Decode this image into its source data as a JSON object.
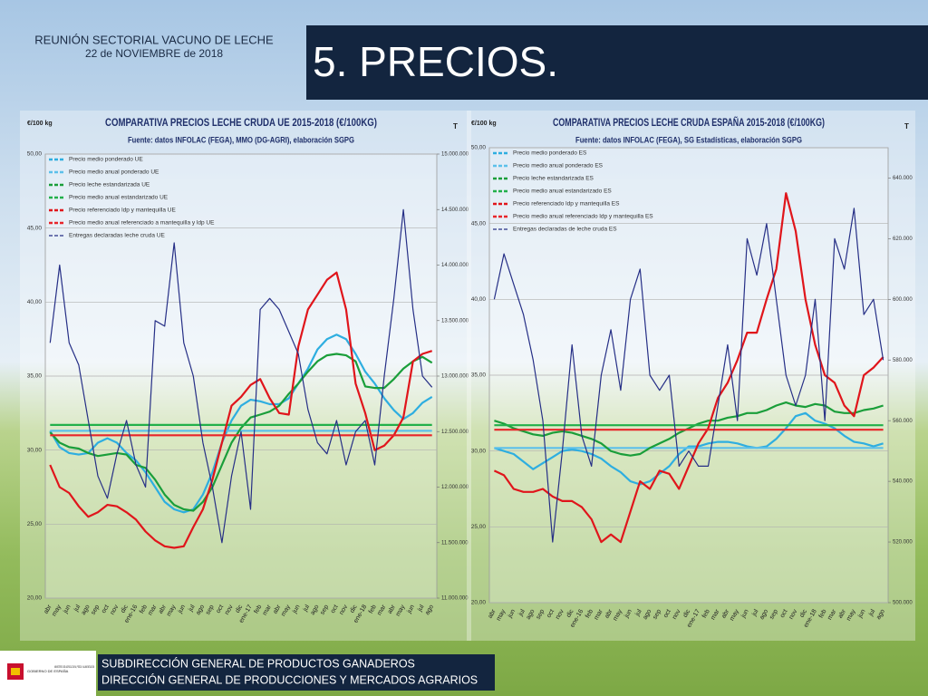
{
  "header": {
    "event": "REUNIÓN SECTORIAL VACUNO DE LECHE",
    "date": "22 de NOVIEMBRE de 2018",
    "title": "5. PRECIOS."
  },
  "footer": {
    "lines": [
      "SUBDIRECCIÓN GENERAL DE PRODUCTOS GANADEROS",
      "DIRECCIÓN GENERAL DE PRODUCCIONES Y MERCADOS AGRARIOS"
    ],
    "logo_government": "GOBIERNO DE ESPAÑA",
    "logo_ministry": "MINISTERIO DE AGRICULTURA, PESCA Y ALIMENTACIÓN"
  },
  "chart_data": [
    {
      "type": "line",
      "title": "COMPARATIVA PRECIOS LECHE CRUDA UE 2015-2018 (€/100KG)",
      "subtitle": "Fuente: datos INFOLAC (FEGA), MMO (DG-AGRI), elaboración SGPG",
      "y_label": "€/100 kg",
      "y2_label": "T",
      "grid": true,
      "legend": "upper left",
      "categories": [
        "abr",
        "may",
        "jun",
        "jul",
        "ago",
        "sep",
        "oct",
        "nov",
        "dic",
        "ene-16",
        "feb",
        "mar",
        "abr",
        "may",
        "jun",
        "jul",
        "ago",
        "sep",
        "oct",
        "nov",
        "dic",
        "ene-17",
        "feb",
        "mar",
        "abr",
        "may",
        "jun",
        "jul",
        "ago",
        "sep",
        "oct",
        "nov",
        "dic",
        "ene-18",
        "feb",
        "mar",
        "abr",
        "may",
        "jun",
        "jul",
        "ago"
      ],
      "ylim": [
        20,
        50
      ],
      "yticks": [
        {
          "value": 20,
          "label": "20,00"
        },
        {
          "value": 25,
          "label": "25,00"
        },
        {
          "value": 30,
          "label": "30,00"
        },
        {
          "value": 35,
          "label": "35,00"
        },
        {
          "value": 40,
          "label": "40,00"
        },
        {
          "value": 45,
          "label": "45,00"
        },
        {
          "value": 50,
          "label": "50,00"
        }
      ],
      "y2lim": [
        11000000,
        15000000
      ],
      "y2ticks": [
        {
          "value": 11000000,
          "label": "11.000.000"
        },
        {
          "value": 11500000,
          "label": "11.500.000"
        },
        {
          "value": 12000000,
          "label": "12.000.000"
        },
        {
          "value": 12500000,
          "label": "12.500.000"
        },
        {
          "value": 13000000,
          "label": "13.000.000"
        },
        {
          "value": 13500000,
          "label": "13.500.000"
        },
        {
          "value": 14000000,
          "label": "14.000.000"
        },
        {
          "value": 14500000,
          "label": "14.500.000"
        },
        {
          "value": 15000000,
          "label": "15.000.000"
        }
      ],
      "series": [
        {
          "name": "Precio medio ponderado UE",
          "color": "#2eaee0",
          "values": [
            31.3,
            30.2,
            29.8,
            29.7,
            29.8,
            30.5,
            30.8,
            30.5,
            29.8,
            29.3,
            28.5,
            27.5,
            26.5,
            26.0,
            25.8,
            26.0,
            27.0,
            28.5,
            30.5,
            32.0,
            33.0,
            33.4,
            33.3,
            33.1,
            33.1,
            33.5,
            34.5,
            35.5,
            36.8,
            37.5,
            37.8,
            37.5,
            36.5,
            35.3,
            34.5,
            33.5,
            32.7,
            32.1,
            32.5,
            33.2,
            33.6
          ]
        },
        {
          "name": "Precio medio anual ponderado UE",
          "color": "#5cc0ea",
          "values": [
            31.3,
            31.3,
            31.3,
            31.3,
            31.3,
            31.3,
            31.3,
            31.3,
            31.3,
            31.3,
            31.3,
            31.3,
            31.3,
            31.3,
            31.3,
            31.3,
            31.3,
            31.3,
            31.3,
            31.3,
            31.3,
            31.3,
            31.3,
            31.3,
            31.3,
            31.3,
            31.3,
            31.3,
            31.3,
            31.3,
            31.3,
            31.3,
            31.3,
            31.3,
            31.3,
            31.3,
            31.3,
            31.3,
            31.3,
            31.3,
            31.3
          ]
        },
        {
          "name": "Precio leche estandarizada UE",
          "color": "#1a9e3a",
          "values": [
            31.2,
            30.5,
            30.2,
            30.1,
            29.8,
            29.6,
            29.7,
            29.8,
            29.7,
            29.0,
            28.8,
            28.0,
            27.0,
            26.3,
            26.0,
            25.9,
            26.5,
            27.5,
            29.0,
            30.5,
            31.5,
            32.2,
            32.4,
            32.6,
            33.0,
            33.8,
            34.5,
            35.3,
            36.0,
            36.4,
            36.5,
            36.4,
            36.0,
            34.3,
            34.2,
            34.2,
            34.8,
            35.5,
            36.0,
            36.3,
            35.9
          ]
        },
        {
          "name": "Precio medio anual estandarizado UE",
          "color": "#22b04a",
          "values": [
            31.7,
            31.7,
            31.7,
            31.7,
            31.7,
            31.7,
            31.7,
            31.7,
            31.7,
            31.7,
            31.7,
            31.7,
            31.7,
            31.7,
            31.7,
            31.7,
            31.7,
            31.7,
            31.7,
            31.7,
            31.7,
            31.7,
            31.7,
            31.7,
            31.7,
            31.7,
            31.7,
            31.7,
            31.7,
            31.7,
            31.7,
            31.7,
            31.7,
            31.7,
            31.7,
            31.7,
            31.7,
            31.7,
            31.7,
            31.7,
            31.7
          ]
        },
        {
          "name": "Precio referenciado ldp y mantequilla UE",
          "color": "#e0151b",
          "values": [
            29.0,
            27.5,
            27.1,
            26.2,
            25.5,
            25.8,
            26.3,
            26.2,
            25.8,
            25.3,
            24.5,
            23.9,
            23.5,
            23.4,
            23.5,
            24.8,
            26.0,
            28.0,
            30.5,
            33.0,
            33.6,
            34.4,
            34.8,
            33.5,
            32.5,
            32.4,
            37.0,
            39.5,
            40.5,
            41.5,
            42.0,
            39.5,
            34.5,
            32.5,
            30.0,
            30.3,
            31.0,
            32.2,
            36.0,
            36.5,
            36.7
          ]
        },
        {
          "name": "Precio medio anual referenciado a mantequilla y ldp UE",
          "color": "#e8262b",
          "values": [
            31.0,
            31.0,
            31.0,
            31.0,
            31.0,
            31.0,
            31.0,
            31.0,
            31.0,
            31.0,
            31.0,
            31.0,
            31.0,
            31.0,
            31.0,
            31.0,
            31.0,
            31.0,
            31.0,
            31.0,
            31.0,
            31.0,
            31.0,
            31.0,
            31.0,
            31.0,
            31.0,
            31.0,
            31.0,
            31.0,
            31.0,
            31.0,
            31.0,
            31.0,
            31.0,
            31.0,
            31.0,
            31.0,
            31.0,
            31.0,
            31.0
          ]
        },
        {
          "name": "Entregas declaradas leche cruda UE",
          "color": "#262f86",
          "axis": "y2",
          "values": [
            13300000,
            14000000,
            13300000,
            13100000,
            12600000,
            12100000,
            11900000,
            12300000,
            12600000,
            12200000,
            12000000,
            13500000,
            13450000,
            14200000,
            13300000,
            13000000,
            12400000,
            12000000,
            11500000,
            12100000,
            12500000,
            11800000,
            13600000,
            13700000,
            13600000,
            13400000,
            13200000,
            12700000,
            12400000,
            12300000,
            12600000,
            12200000,
            12500000,
            12600000,
            12200000,
            13000000,
            13700000,
            14500000,
            13600000,
            13000000,
            12900000
          ]
        }
      ]
    },
    {
      "type": "line",
      "title": "COMPARATIVA PRECIOS LECHE CRUDA ESPAÑA 2015-2018 (€/100KG)",
      "subtitle": "Fuente: datos INFOLAC (FEGA), SG Estadísticas, elaboración SGPG",
      "y_label": "€/100 kg",
      "y2_label": "T",
      "grid": true,
      "legend": "upper left",
      "categories": [
        "abr",
        "may",
        "jun",
        "jul",
        "ago",
        "sep",
        "oct",
        "nov",
        "dic",
        "ene-16",
        "feb",
        "mar",
        "abr",
        "may",
        "jun",
        "jul",
        "ago",
        "sep",
        "oct",
        "nov",
        "dic",
        "ene-17",
        "feb",
        "mar",
        "abr",
        "may",
        "jun",
        "jul",
        "ago",
        "sep",
        "oct",
        "nov",
        "dic",
        "ene-18",
        "feb",
        "mar",
        "abr",
        "may",
        "jun",
        "jul",
        "ago"
      ],
      "ylim": [
        20,
        50
      ],
      "yticks": [
        {
          "value": 20,
          "label": "20,00"
        },
        {
          "value": 25,
          "label": "25,00"
        },
        {
          "value": 30,
          "label": "30,00"
        },
        {
          "value": 35,
          "label": "35,00"
        },
        {
          "value": 40,
          "label": "40,00"
        },
        {
          "value": 45,
          "label": "45,00"
        },
        {
          "value": 50,
          "label": "50,00"
        }
      ],
      "y2lim": [
        500000,
        650000
      ],
      "y2ticks": [
        {
          "value": 500000,
          "label": "500.000"
        },
        {
          "value": 520000,
          "label": "520.000"
        },
        {
          "value": 540000,
          "label": "540.000"
        },
        {
          "value": 560000,
          "label": "560.000"
        },
        {
          "value": 580000,
          "label": "580.000"
        },
        {
          "value": 600000,
          "label": "600.000"
        },
        {
          "value": 620000,
          "label": "620.000"
        },
        {
          "value": 640000,
          "label": "640.000"
        }
      ],
      "series": [
        {
          "name": "Precio medio ponderado ES",
          "color": "#2eaee0",
          "values": [
            30.2,
            30.0,
            29.8,
            29.3,
            28.8,
            29.2,
            29.6,
            30.0,
            30.1,
            30.0,
            29.8,
            29.5,
            29.0,
            28.6,
            28.0,
            27.8,
            28.0,
            28.5,
            29.0,
            29.8,
            30.3,
            30.3,
            30.5,
            30.6,
            30.6,
            30.5,
            30.3,
            30.2,
            30.3,
            30.8,
            31.5,
            32.3,
            32.5,
            32.0,
            31.8,
            31.5,
            31.0,
            30.6,
            30.5,
            30.3,
            30.5
          ]
        },
        {
          "name": "Precio medio anual ponderado ES",
          "color": "#5cc0ea",
          "values": [
            30.2,
            30.2,
            30.2,
            30.2,
            30.2,
            30.2,
            30.2,
            30.2,
            30.2,
            30.2,
            30.2,
            30.2,
            30.2,
            30.2,
            30.2,
            30.2,
            30.2,
            30.2,
            30.2,
            30.2,
            30.2,
            30.2,
            30.2,
            30.2,
            30.2,
            30.2,
            30.2,
            30.2,
            30.2,
            30.2,
            30.2,
            30.2,
            30.2,
            30.2,
            30.2,
            30.2,
            30.2,
            30.2,
            30.2,
            30.2,
            30.2
          ]
        },
        {
          "name": "Precio leche estandarizada ES",
          "color": "#1a9e3a",
          "values": [
            32.0,
            31.8,
            31.5,
            31.3,
            31.1,
            31.0,
            31.2,
            31.3,
            31.2,
            31.0,
            30.8,
            30.5,
            30.0,
            29.8,
            29.7,
            29.8,
            30.2,
            30.5,
            30.8,
            31.2,
            31.5,
            31.8,
            32.0,
            32.0,
            32.2,
            32.3,
            32.5,
            32.5,
            32.7,
            33.0,
            33.2,
            33.0,
            32.9,
            33.1,
            33.0,
            32.6,
            32.5,
            32.5,
            32.7,
            32.8,
            33.0
          ]
        },
        {
          "name": "Precio medio anual estandarizado ES",
          "color": "#22b04a",
          "values": [
            31.7,
            31.7,
            31.7,
            31.7,
            31.7,
            31.7,
            31.7,
            31.7,
            31.7,
            31.7,
            31.7,
            31.7,
            31.7,
            31.7,
            31.7,
            31.7,
            31.7,
            31.7,
            31.7,
            31.7,
            31.7,
            31.7,
            31.7,
            31.7,
            31.7,
            31.7,
            31.7,
            31.7,
            31.7,
            31.7,
            31.7,
            31.7,
            31.7,
            31.7,
            31.7,
            31.7,
            31.7,
            31.7,
            31.7,
            31.7,
            31.7
          ]
        },
        {
          "name": "Precio referenciado ldp y mantequilla ES",
          "color": "#e0151b",
          "values": [
            28.7,
            28.4,
            27.5,
            27.3,
            27.3,
            27.5,
            27.0,
            26.7,
            26.7,
            26.3,
            25.5,
            24.0,
            24.5,
            24.0,
            26.0,
            28.0,
            27.5,
            28.7,
            28.5,
            27.5,
            29.0,
            30.5,
            31.5,
            33.5,
            34.5,
            36.0,
            37.8,
            37.8,
            40.0,
            42.0,
            47.0,
            44.5,
            40.0,
            37.0,
            35.0,
            34.5,
            33.0,
            32.3,
            35.0,
            35.5,
            36.2
          ]
        },
        {
          "name": "Precio medio anual referenciado ldp y mantequilla ES",
          "color": "#e8262b",
          "values": [
            31.4,
            31.4,
            31.4,
            31.4,
            31.4,
            31.4,
            31.4,
            31.4,
            31.4,
            31.4,
            31.4,
            31.4,
            31.4,
            31.4,
            31.4,
            31.4,
            31.4,
            31.4,
            31.4,
            31.4,
            31.4,
            31.4,
            31.4,
            31.4,
            31.4,
            31.4,
            31.4,
            31.4,
            31.4,
            31.4,
            31.4,
            31.4,
            31.4,
            31.4,
            31.4,
            31.4,
            31.4,
            31.4,
            31.4,
            31.4,
            31.4
          ]
        },
        {
          "name": "Entregas declaradas de leche cruda ES",
          "color": "#262f86",
          "axis": "y2",
          "values": [
            600000,
            615000,
            605000,
            595000,
            580000,
            560000,
            520000,
            550000,
            585000,
            555000,
            545000,
            575000,
            590000,
            570000,
            600000,
            610000,
            575000,
            570000,
            575000,
            545000,
            550000,
            545000,
            545000,
            565000,
            585000,
            560000,
            620000,
            608000,
            625000,
            600000,
            575000,
            565000,
            575000,
            600000,
            560000,
            620000,
            610000,
            630000,
            595000,
            600000,
            580000
          ]
        }
      ]
    }
  ]
}
